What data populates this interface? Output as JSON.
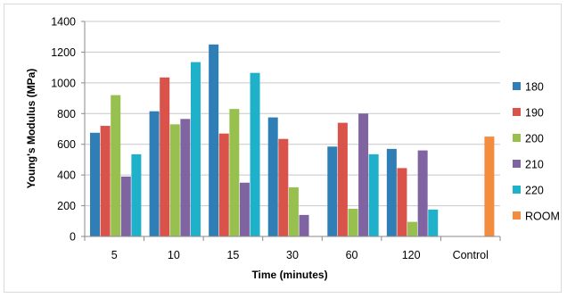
{
  "chart_data": {
    "type": "bar",
    "xlabel": "Time (minutes)",
    "ylabel": "Young's Modulus  (MPa)",
    "ylim": [
      0,
      1400
    ],
    "yticks": [
      0,
      200,
      400,
      600,
      800,
      1000,
      1200,
      1400
    ],
    "grid": true,
    "legend_position": "right",
    "categories": [
      "5",
      "10",
      "15",
      "30",
      "60",
      "120",
      "Control"
    ],
    "series": [
      {
        "name": "180",
        "color": "#2f7fb6",
        "values": [
          675,
          815,
          1250,
          775,
          585,
          570,
          null
        ]
      },
      {
        "name": "190",
        "color": "#d9534a",
        "values": [
          720,
          1035,
          670,
          635,
          740,
          445,
          null
        ]
      },
      {
        "name": "200",
        "color": "#98c04f",
        "values": [
          920,
          730,
          830,
          320,
          180,
          95,
          null
        ]
      },
      {
        "name": "210",
        "color": "#8064a2",
        "values": [
          390,
          765,
          350,
          140,
          800,
          560,
          null
        ]
      },
      {
        "name": "220",
        "color": "#1fb1c9",
        "values": [
          535,
          1135,
          1065,
          null,
          535,
          175,
          null
        ]
      },
      {
        "name": "ROOM",
        "color": "#f38c3f",
        "values": [
          null,
          null,
          null,
          null,
          null,
          null,
          650
        ]
      }
    ]
  }
}
